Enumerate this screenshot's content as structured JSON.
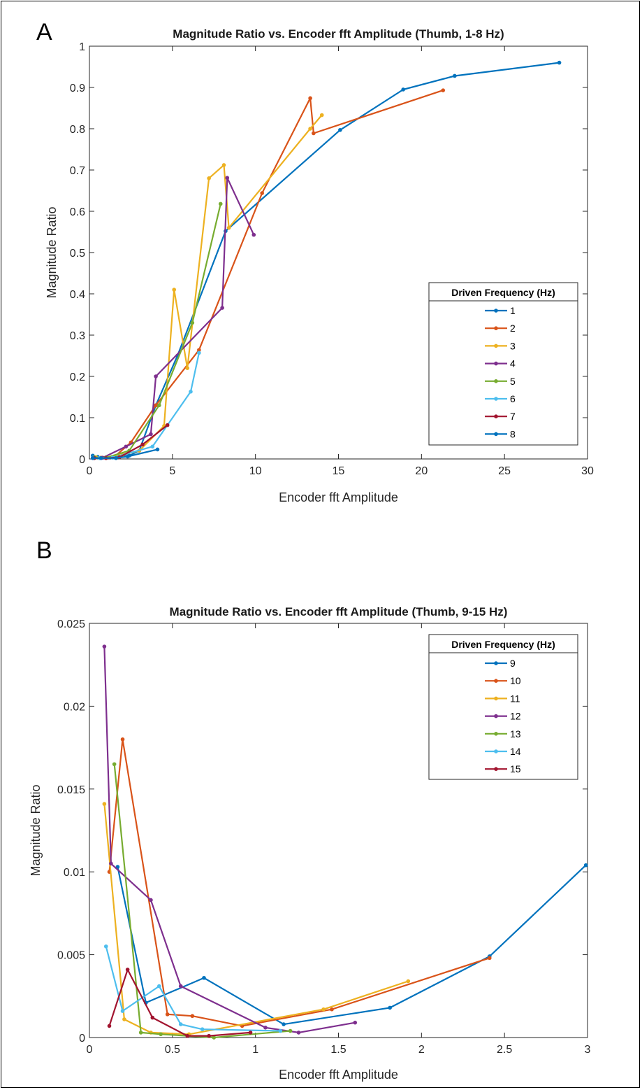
{
  "chart_data": [
    {
      "type": "line",
      "panel_label": "A",
      "title": "Magnitude Ratio vs. Encoder fft Amplitude (Thumb, 1-8 Hz)",
      "xlabel": "Encoder fft Amplitude",
      "ylabel": "Magnitude Ratio",
      "xlim": [
        0,
        30
      ],
      "ylim": [
        0,
        1
      ],
      "xticks": [
        0,
        5,
        10,
        15,
        20,
        25,
        30
      ],
      "yticks": [
        0,
        0.1,
        0.2,
        0.3,
        0.4,
        0.5,
        0.6,
        0.7,
        0.8,
        0.9,
        1
      ],
      "grid": false,
      "legend_title": "Driven Frequency (Hz)",
      "legend_position": "right",
      "series": [
        {
          "name": "1",
          "color": "#0072BD",
          "points": [
            [
              0.2,
              0.008
            ],
            [
              0.5,
              0.005
            ],
            [
              1.0,
              0.004
            ],
            [
              2.4,
              0.008
            ],
            [
              3.0,
              0.02
            ],
            [
              4.0,
              0.13
            ],
            [
              5.3,
              0.25
            ],
            [
              8.2,
              0.552
            ],
            [
              15.1,
              0.797
            ],
            [
              18.9,
              0.895
            ],
            [
              22.0,
              0.928
            ],
            [
              28.3,
              0.96
            ]
          ]
        },
        {
          "name": "2",
          "color": "#D95319",
          "points": [
            [
              0.3,
              0.004
            ],
            [
              0.7,
              0.003
            ],
            [
              1.5,
              0.005
            ],
            [
              2.5,
              0.04
            ],
            [
              4.0,
              0.13
            ],
            [
              6.6,
              0.264
            ],
            [
              10.4,
              0.644
            ],
            [
              13.3,
              0.874
            ],
            [
              13.5,
              0.789
            ],
            [
              21.3,
              0.893
            ]
          ]
        },
        {
          "name": "3",
          "color": "#EDB120",
          "points": [
            [
              0.4,
              0.004
            ],
            [
              1.0,
              0.004
            ],
            [
              2.0,
              0.01
            ],
            [
              3.0,
              0.02
            ],
            [
              4.5,
              0.08
            ],
            [
              5.1,
              0.41
            ],
            [
              5.9,
              0.22
            ],
            [
              7.2,
              0.68
            ],
            [
              8.1,
              0.712
            ],
            [
              8.4,
              0.56
            ],
            [
              13.3,
              0.8
            ],
            [
              14.0,
              0.833
            ]
          ]
        },
        {
          "name": "4",
          "color": "#7E2F8E",
          "points": [
            [
              0.2,
              0.003
            ],
            [
              0.8,
              0.003
            ],
            [
              2.2,
              0.03
            ],
            [
              3.7,
              0.06
            ],
            [
              4.0,
              0.2
            ],
            [
              8.0,
              0.366
            ],
            [
              8.3,
              0.681
            ],
            [
              9.9,
              0.543
            ]
          ]
        },
        {
          "name": "5",
          "color": "#77AC30",
          "points": [
            [
              0.3,
              0.004
            ],
            [
              1.0,
              0.003
            ],
            [
              2.4,
              0.02
            ],
            [
              4.2,
              0.13
            ],
            [
              6.2,
              0.33
            ],
            [
              7.9,
              0.618
            ]
          ]
        },
        {
          "name": "6",
          "color": "#4DBEEE",
          "points": [
            [
              0.2,
              0.003
            ],
            [
              0.6,
              0.002
            ],
            [
              1.4,
              0.003
            ],
            [
              3.8,
              0.03
            ],
            [
              6.1,
              0.163
            ],
            [
              6.6,
              0.257
            ]
          ]
        },
        {
          "name": "7",
          "color": "#A2142F",
          "points": [
            [
              0.3,
              0.002
            ],
            [
              1.0,
              0.002
            ],
            [
              1.8,
              0.004
            ],
            [
              3.2,
              0.035
            ],
            [
              4.7,
              0.082
            ]
          ]
        },
        {
          "name": "8",
          "color": "#0072BD",
          "points": [
            [
              0.2,
              0.002
            ],
            [
              0.7,
              0.002
            ],
            [
              1.6,
              0.002
            ],
            [
              2.3,
              0.006
            ],
            [
              4.1,
              0.023
            ]
          ]
        }
      ]
    },
    {
      "type": "line",
      "panel_label": "B",
      "title": "Magnitude Ratio vs. Encoder fft Amplitude (Thumb, 9-15 Hz)",
      "xlabel": "Encoder fft Amplitude",
      "ylabel": "Magnitude Ratio",
      "xlim": [
        0,
        3
      ],
      "ylim": [
        0,
        0.025
      ],
      "xticks": [
        0,
        0.5,
        1,
        1.5,
        2,
        2.5,
        3
      ],
      "xtick_labels": [
        "0",
        "0.5",
        "1",
        "1.5",
        "2",
        "2.5",
        "3"
      ],
      "yticks": [
        0,
        0.005,
        0.01,
        0.015,
        0.02,
        0.025
      ],
      "ytick_labels": [
        "0",
        "0.005",
        "0.01",
        "0.015",
        "0.02",
        "0.025"
      ],
      "grid": false,
      "legend_title": "Driven Frequency (Hz)",
      "legend_position": "top-right",
      "series": [
        {
          "name": "9",
          "color": "#0072BD",
          "points": [
            [
              0.17,
              0.0103
            ],
            [
              0.34,
              0.0021
            ],
            [
              0.69,
              0.0036
            ],
            [
              1.17,
              0.0008
            ],
            [
              1.81,
              0.0018
            ],
            [
              2.41,
              0.0049
            ],
            [
              2.99,
              0.0104
            ]
          ]
        },
        {
          "name": "10",
          "color": "#D95319",
          "points": [
            [
              0.12,
              0.01
            ],
            [
              0.2,
              0.018
            ],
            [
              0.47,
              0.0014
            ],
            [
              0.62,
              0.0013
            ],
            [
              0.92,
              0.0007
            ],
            [
              1.46,
              0.0017
            ],
            [
              2.41,
              0.0048
            ]
          ]
        },
        {
          "name": "11",
          "color": "#EDB120",
          "points": [
            [
              0.09,
              0.0141
            ],
            [
              0.21,
              0.0011
            ],
            [
              0.37,
              0.0003
            ],
            [
              0.6,
              0.0002
            ],
            [
              1.41,
              0.0017
            ],
            [
              1.92,
              0.0034
            ]
          ]
        },
        {
          "name": "12",
          "color": "#7E2F8E",
          "points": [
            [
              0.09,
              0.0236
            ],
            [
              0.13,
              0.0105
            ],
            [
              0.37,
              0.0083
            ],
            [
              0.55,
              0.0031
            ],
            [
              1.06,
              0.0006
            ],
            [
              1.26,
              0.0003
            ],
            [
              1.6,
              0.0009
            ]
          ]
        },
        {
          "name": "13",
          "color": "#77AC30",
          "points": [
            [
              0.15,
              0.0165
            ],
            [
              0.31,
              0.0003
            ],
            [
              0.43,
              0.0002
            ],
            [
              0.75,
              0.0
            ],
            [
              1.21,
              0.0004
            ]
          ]
        },
        {
          "name": "14",
          "color": "#4DBEEE",
          "points": [
            [
              0.1,
              0.0055
            ],
            [
              0.2,
              0.0016
            ],
            [
              0.42,
              0.0031
            ],
            [
              0.55,
              0.0008
            ],
            [
              0.68,
              0.0005
            ],
            [
              1.15,
              0.0004
            ]
          ]
        },
        {
          "name": "15",
          "color": "#A2142F",
          "points": [
            [
              0.12,
              0.0007
            ],
            [
              0.23,
              0.0041
            ],
            [
              0.38,
              0.0012
            ],
            [
              0.59,
              0.0001
            ],
            [
              0.72,
              0.0001
            ],
            [
              0.97,
              0.0003
            ]
          ]
        }
      ]
    }
  ]
}
